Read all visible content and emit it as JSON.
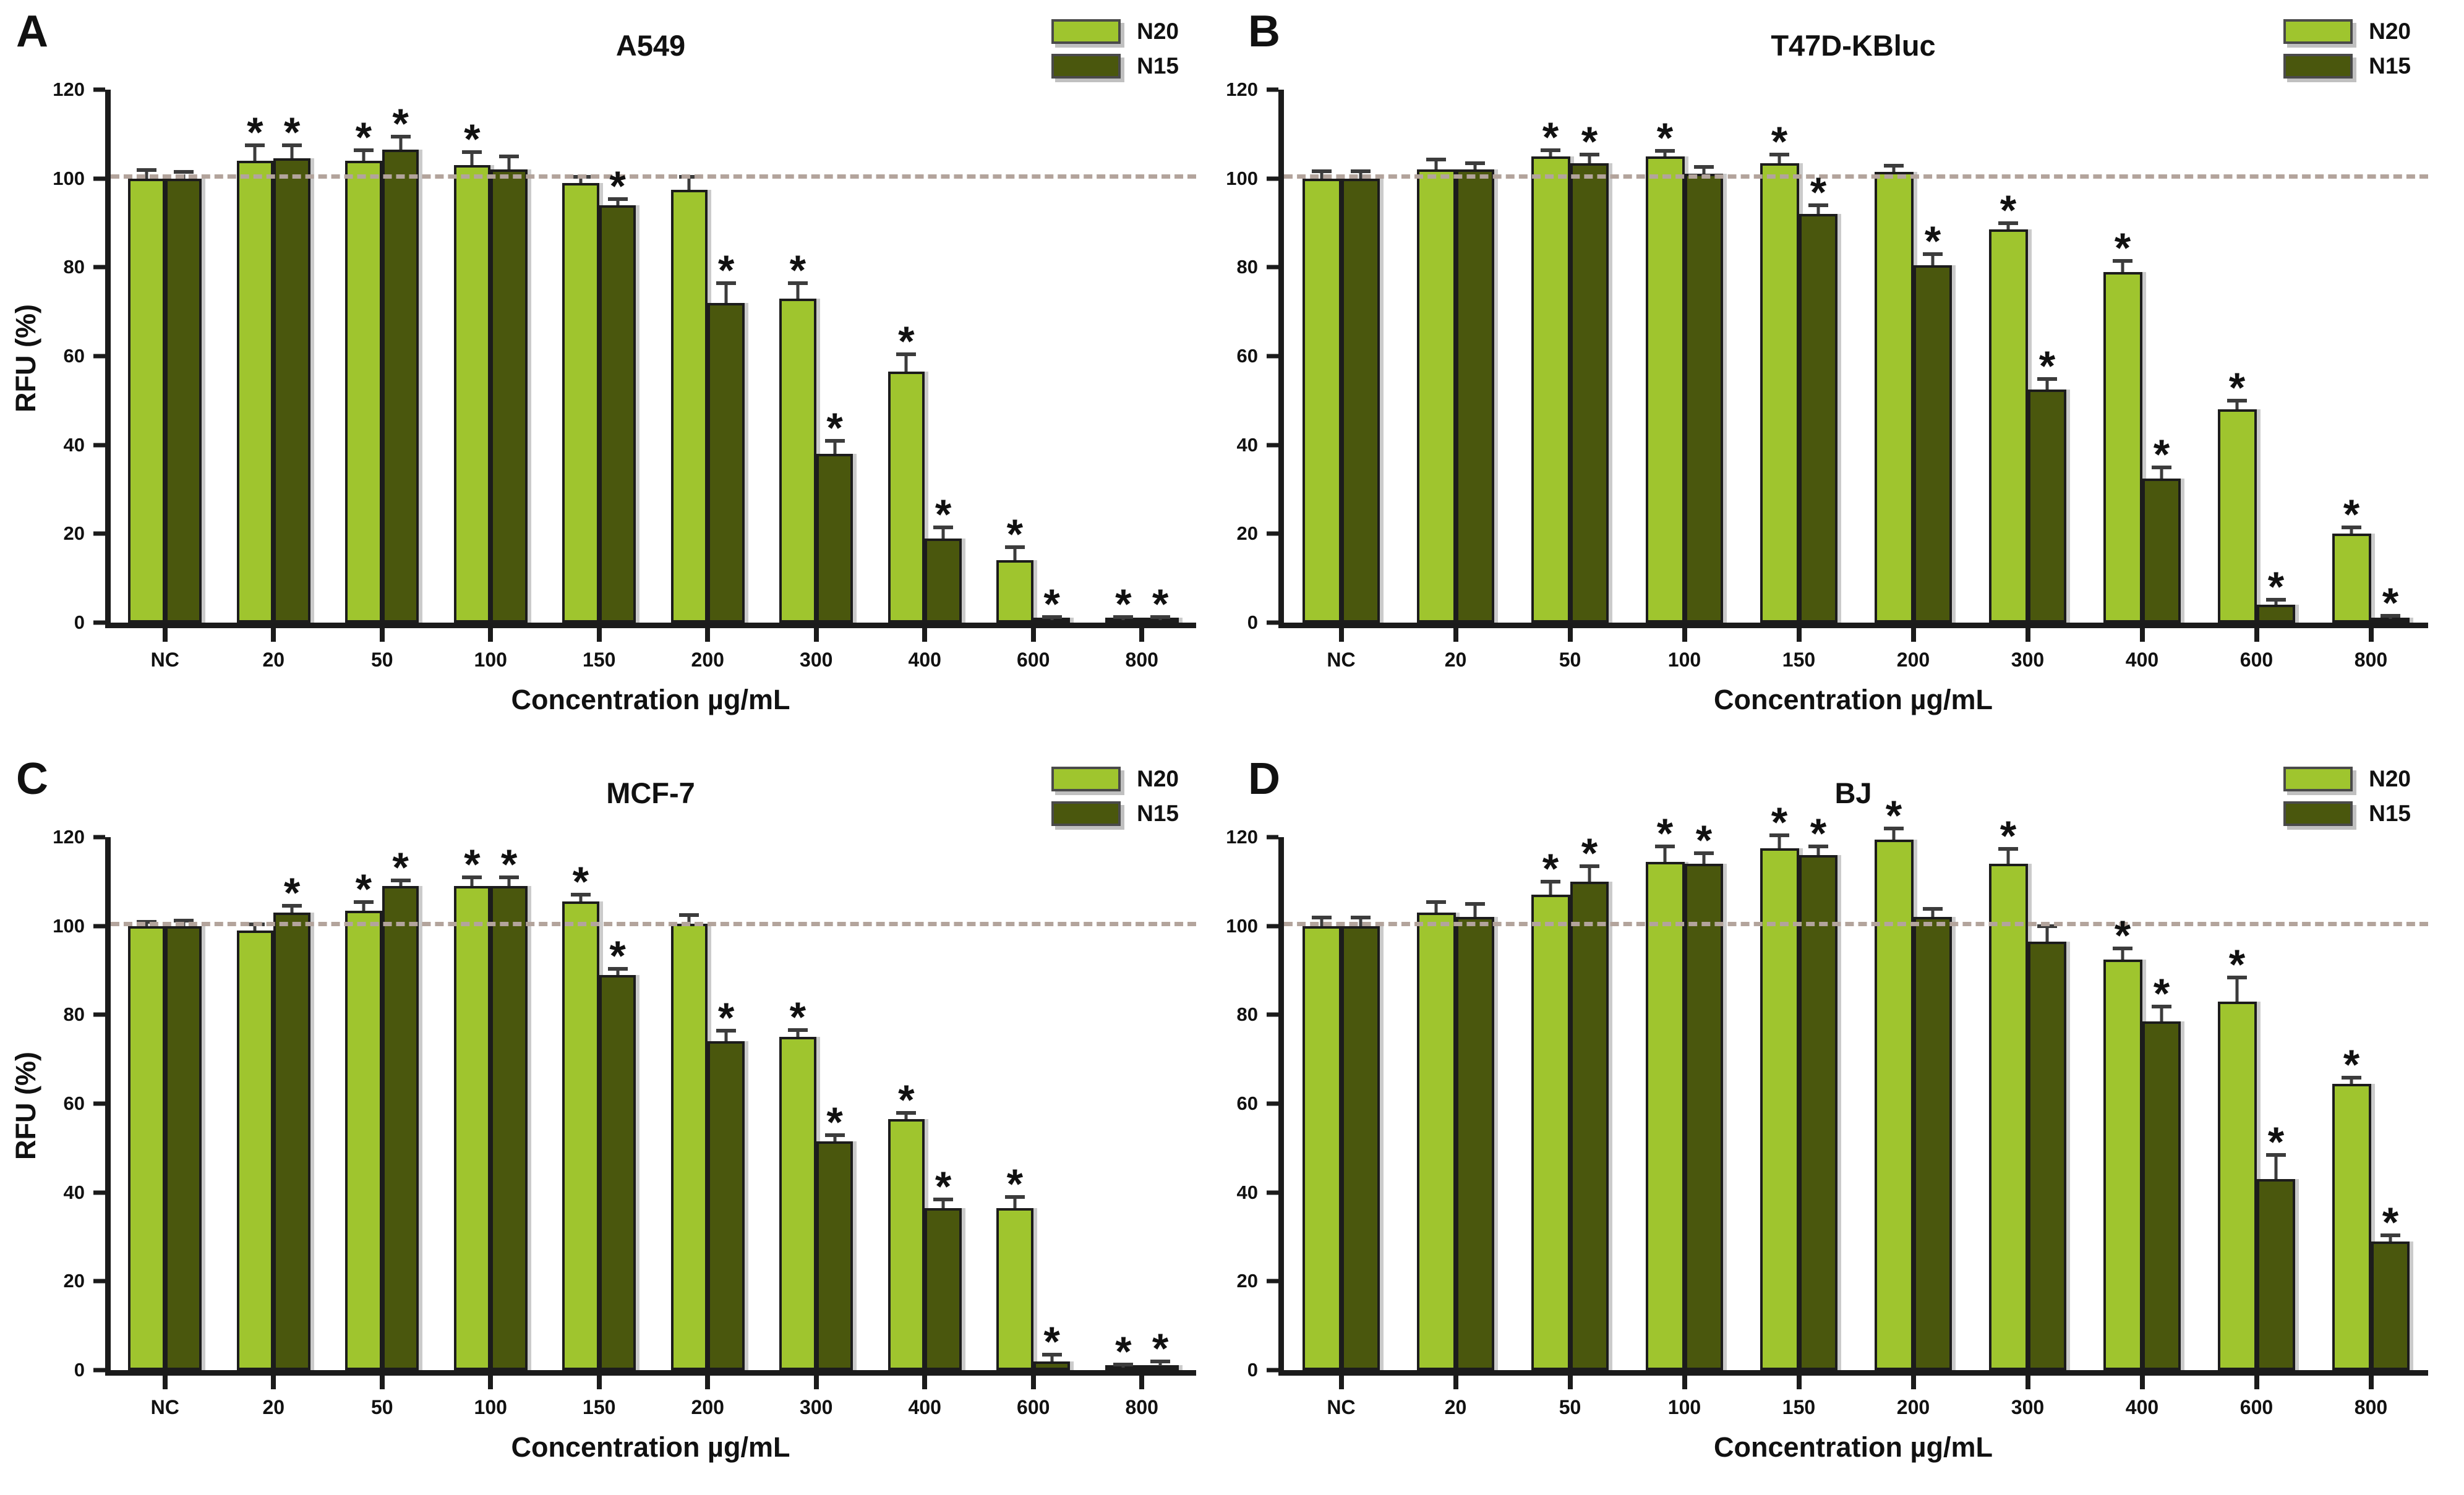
{
  "figure": {
    "background": "#ffffff",
    "sig_marker": "*",
    "axis_color": "#1b1b1b",
    "legend": {
      "items": [
        {
          "label": "N20",
          "color": "#9fc52e"
        },
        {
          "label": "N15",
          "color": "#4a570d"
        }
      ]
    },
    "reference_line": {
      "y": 100,
      "style": "dashed",
      "color": "#b3a49c"
    }
  },
  "chart_data": [
    {
      "type": "bar",
      "panel_letter": "A",
      "title": "A549",
      "xlabel": "Concentration µg/mL",
      "ylabel": "RFU (%)",
      "ylim": [
        0,
        120
      ],
      "yticks": [
        0,
        20,
        40,
        60,
        80,
        100,
        120
      ],
      "grid": false,
      "legend_position": "top-right",
      "categories": [
        "NC",
        "20",
        "50",
        "100",
        "150",
        "200",
        "300",
        "400",
        "600",
        "800"
      ],
      "series": [
        {
          "name": "N20",
          "color": "#9fc52e",
          "values": [
            100,
            104,
            104,
            103,
            99,
            97.5,
            73,
            56.5,
            14,
            0.5
          ],
          "errors": [
            1.5,
            3,
            2,
            2.5,
            1,
            2.5,
            3,
            3.5,
            2.5,
            0.3
          ],
          "significant": [
            false,
            true,
            true,
            true,
            false,
            false,
            true,
            true,
            true,
            true
          ]
        },
        {
          "name": "N15",
          "color": "#4a570d",
          "values": [
            100,
            104.5,
            106.5,
            102,
            94,
            72,
            38,
            19,
            0.5,
            0.5
          ],
          "errors": [
            1,
            2.5,
            2.5,
            2.5,
            1,
            4,
            2.5,
            2,
            0.3,
            0.3
          ],
          "significant": [
            false,
            true,
            true,
            false,
            true,
            true,
            true,
            true,
            true,
            true
          ]
        }
      ]
    },
    {
      "type": "bar",
      "panel_letter": "B",
      "title": "T47D-KBluc",
      "xlabel": "Concentration µg/mL",
      "ylabel": null,
      "ylim": [
        0,
        120
      ],
      "yticks": [
        0,
        20,
        40,
        60,
        80,
        100,
        120
      ],
      "grid": false,
      "legend_position": "top-right",
      "categories": [
        "NC",
        "20",
        "50",
        "100",
        "150",
        "200",
        "300",
        "400",
        "600",
        "800"
      ],
      "series": [
        {
          "name": "N20",
          "color": "#9fc52e",
          "values": [
            100,
            102,
            105,
            105,
            103.5,
            101.5,
            88.5,
            79,
            48,
            20
          ],
          "errors": [
            1.2,
            1.8,
            1,
            0.8,
            1.5,
            1,
            1,
            2,
            1.5,
            1
          ],
          "significant": [
            false,
            false,
            true,
            true,
            true,
            false,
            true,
            true,
            true,
            true
          ]
        },
        {
          "name": "N15",
          "color": "#4a570d",
          "values": [
            100,
            102,
            103.5,
            101,
            92,
            80.5,
            52.5,
            32.5,
            4,
            0.8
          ],
          "errors": [
            1.2,
            1,
            1.5,
            1.2,
            1.5,
            2,
            2,
            2,
            0.8,
            0.3
          ],
          "significant": [
            false,
            false,
            true,
            false,
            true,
            true,
            true,
            true,
            true,
            true
          ]
        }
      ]
    },
    {
      "type": "bar",
      "panel_letter": "C",
      "title": "MCF-7",
      "xlabel": "Concentration µg/mL",
      "ylabel": "RFU (%)",
      "ylim": [
        0,
        120
      ],
      "yticks": [
        0,
        20,
        40,
        60,
        80,
        100,
        120
      ],
      "grid": false,
      "legend_position": "top-right",
      "categories": [
        "NC",
        "20",
        "50",
        "100",
        "150",
        "200",
        "300",
        "400",
        "600",
        "800"
      ],
      "series": [
        {
          "name": "N20",
          "color": "#9fc52e",
          "values": [
            100,
            99,
            103.5,
            109,
            105.5,
            100.5,
            75,
            56.5,
            36.5,
            0.5
          ],
          "errors": [
            0.5,
            1,
            1.5,
            1.5,
            1.2,
            1.5,
            1.2,
            1,
            2,
            0.3
          ],
          "significant": [
            false,
            false,
            true,
            true,
            true,
            false,
            true,
            true,
            true,
            true
          ]
        },
        {
          "name": "N15",
          "color": "#4a570d",
          "values": [
            100,
            103,
            109,
            109,
            89,
            74,
            51.5,
            36.5,
            2,
            1
          ],
          "errors": [
            0.8,
            1.2,
            0.8,
            1.5,
            1,
            2,
            1,
            1.5,
            1,
            0.5
          ],
          "significant": [
            false,
            true,
            true,
            true,
            true,
            true,
            true,
            true,
            true,
            true
          ]
        }
      ]
    },
    {
      "type": "bar",
      "panel_letter": "D",
      "title": "BJ",
      "xlabel": "Concentration µg/mL",
      "ylabel": null,
      "ylim": [
        0,
        120
      ],
      "yticks": [
        0,
        20,
        40,
        60,
        80,
        100,
        120
      ],
      "grid": false,
      "legend_position": "top-right",
      "categories": [
        "NC",
        "20",
        "50",
        "100",
        "150",
        "200",
        "300",
        "400",
        "600",
        "800"
      ],
      "series": [
        {
          "name": "N20",
          "color": "#9fc52e",
          "values": [
            100,
            103,
            107,
            114.5,
            117.5,
            119.5,
            114,
            92.5,
            83,
            64.5
          ],
          "errors": [
            1.5,
            2,
            2.5,
            3,
            2.5,
            2,
            3,
            2,
            5,
            1
          ],
          "significant": [
            false,
            false,
            true,
            true,
            true,
            true,
            true,
            true,
            true,
            true
          ]
        },
        {
          "name": "N15",
          "color": "#4a570d",
          "values": [
            100,
            102,
            110,
            114,
            116,
            102,
            96.5,
            78.5,
            43,
            29
          ],
          "errors": [
            1.5,
            2.5,
            3,
            2,
            1.5,
            1.5,
            3,
            3,
            5,
            1
          ],
          "significant": [
            false,
            false,
            true,
            true,
            true,
            false,
            false,
            true,
            true,
            true
          ]
        }
      ]
    }
  ]
}
